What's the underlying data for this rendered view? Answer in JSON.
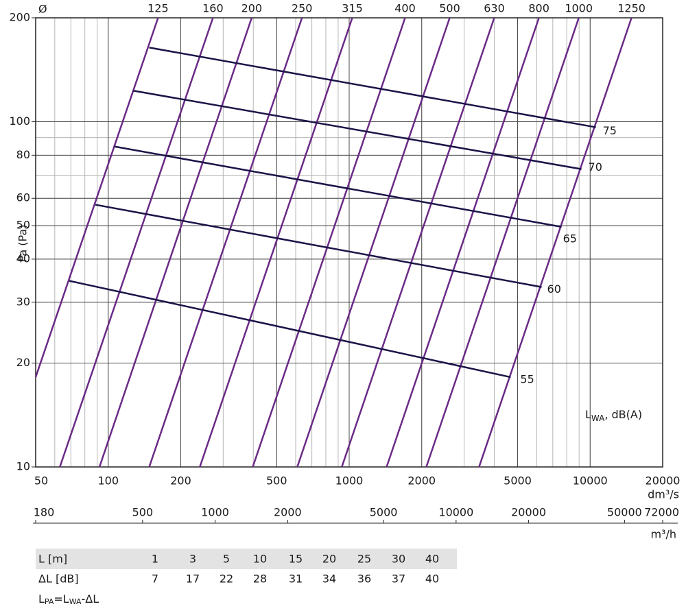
{
  "chart_data": {
    "type": "line",
    "diameter_label": "Ø",
    "ylabel": "Pa (Pa)",
    "xlabel": "dm³/s",
    "x2label": "m³/h",
    "x_scale": "log",
    "y_scale": "log",
    "grid": true,
    "xlim": [
      50,
      20000
    ],
    "xticks": [
      50,
      100,
      200,
      500,
      1000,
      2000,
      5000,
      10000,
      20000
    ],
    "ylim": [
      10,
      200
    ],
    "yticks": [
      10,
      20,
      30,
      40,
      50,
      60,
      80,
      100,
      200
    ],
    "x2lim": [
      180,
      72000
    ],
    "x2ticks": [
      180,
      500,
      1000,
      2000,
      5000,
      10000,
      20000,
      50000,
      72000
    ],
    "series": [
      {
        "name": "125",
        "color": "#6a2a86",
        "x": [
          50,
          161
        ],
        "values": [
          18.2,
          200
        ]
      },
      {
        "name": "160",
        "color": "#6a2a86",
        "x": [
          63,
          272
        ],
        "values": [
          10,
          200
        ]
      },
      {
        "name": "200",
        "color": "#6a2a86",
        "x": [
          92,
          394
        ],
        "values": [
          10,
          200
        ]
      },
      {
        "name": "250",
        "color": "#6a2a86",
        "x": [
          148,
          637
        ],
        "values": [
          10,
          200
        ]
      },
      {
        "name": "315",
        "color": "#6a2a86",
        "x": [
          240,
          1030
        ],
        "values": [
          10,
          200
        ]
      },
      {
        "name": "400",
        "color": "#6a2a86",
        "x": [
          398,
          1706
        ],
        "values": [
          10,
          200
        ]
      },
      {
        "name": "500",
        "color": "#6a2a86",
        "x": [
          609,
          2613
        ],
        "values": [
          10,
          200
        ]
      },
      {
        "name": "630",
        "color": "#6a2a86",
        "x": [
          932,
          4000
        ],
        "values": [
          10,
          200
        ]
      },
      {
        "name": "800",
        "color": "#6a2a86",
        "x": [
          1430,
          6130
        ],
        "values": [
          10,
          200
        ]
      },
      {
        "name": "1000",
        "color": "#6a2a86",
        "x": [
          2090,
          8970
        ],
        "values": [
          10,
          200
        ]
      },
      {
        "name": "1250",
        "color": "#6a2a86",
        "x": [
          3460,
          14850
        ],
        "values": [
          10,
          200
        ]
      }
    ],
    "sound_series": [
      {
        "name": "75",
        "color": "#1b1448",
        "x": [
          148,
          10560
        ],
        "values": [
          164,
          96.4
        ]
      },
      {
        "name": "70",
        "color": "#1b1448",
        "x": [
          127,
          9200
        ],
        "values": [
          123,
          72.9
        ]
      },
      {
        "name": "65",
        "color": "#1b1448",
        "x": [
          106,
          7610
        ],
        "values": [
          84.8,
          49.6
        ]
      },
      {
        "name": "60",
        "color": "#1b1448",
        "x": [
          88.5,
          6290
        ],
        "values": [
          57.5,
          33.2
        ]
      },
      {
        "name": "55",
        "color": "#1b1448",
        "x": [
          69,
          4680
        ],
        "values": [
          34.6,
          18.2
        ]
      }
    ],
    "annotation": {
      "main": "L",
      "sub": "WA",
      "rest": ", dB(A)"
    }
  },
  "table": {
    "rows": [
      [
        "L [m]",
        1,
        3,
        5,
        10,
        15,
        20,
        25,
        30,
        40
      ],
      [
        "ΔL [dB]",
        7,
        17,
        22,
        28,
        31,
        34,
        36,
        37,
        40
      ]
    ]
  },
  "formula": {
    "a": "L",
    "a_sub": "PA",
    "eq": "=L",
    "b_sub": "WA",
    "rest": "-ΔL"
  }
}
